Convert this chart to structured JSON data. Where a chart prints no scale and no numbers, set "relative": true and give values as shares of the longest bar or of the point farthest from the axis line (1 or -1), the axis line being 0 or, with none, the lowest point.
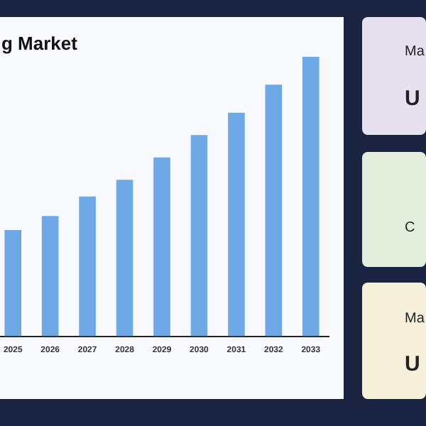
{
  "chart_data": {
    "type": "bar",
    "title": "g Market",
    "categories": [
      "2025",
      "2026",
      "2027",
      "2028",
      "2029",
      "2030",
      "2031",
      "2032",
      "2033"
    ],
    "values": [
      0.38,
      0.43,
      0.5,
      0.56,
      0.64,
      0.72,
      0.8,
      0.9,
      1
    ],
    "color": "#6ea8e6",
    "relative": true,
    "grid": false,
    "legend": false,
    "annotations": [
      "Ma",
      "U",
      "C",
      "Ma",
      "U"
    ]
  }
}
